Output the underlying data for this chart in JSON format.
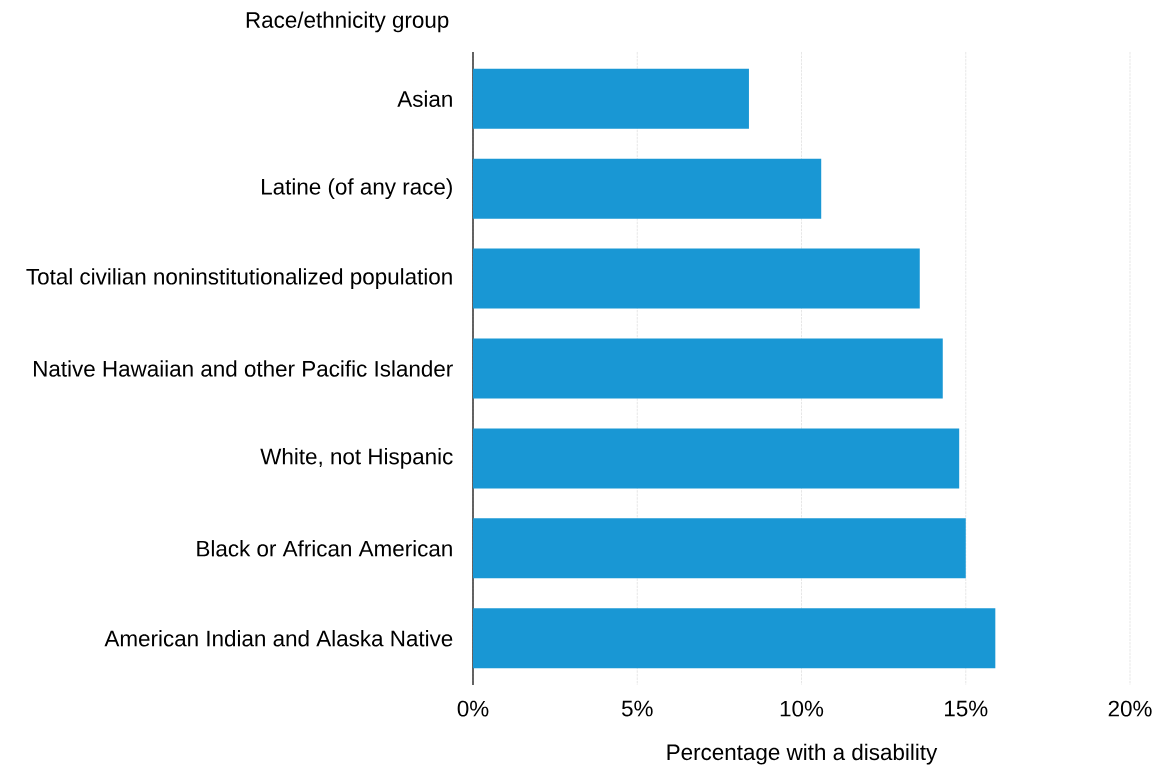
{
  "chart_data": {
    "type": "bar",
    "orientation": "horizontal",
    "ylabel": "Race/ethnicity group",
    "xlabel": "Percentage with a disability",
    "categories": [
      "Asian",
      "Latine (of any race)",
      "Total civilian noninstitutionalized population",
      "Native Hawaiian and other Pacific Islander",
      "White, not Hispanic",
      "Black or African American",
      "American Indian and Alaska Native"
    ],
    "values": [
      8.4,
      10.6,
      13.6,
      14.3,
      14.8,
      15.0,
      15.9
    ],
    "color": "#1997d4",
    "xlim": [
      0,
      20
    ],
    "xticks": [
      {
        "value": 0,
        "label": "0%"
      },
      {
        "value": 5,
        "label": "5%"
      },
      {
        "value": 10,
        "label": "10%"
      },
      {
        "value": 15,
        "label": "15%"
      },
      {
        "value": 20,
        "label": "20%"
      }
    ],
    "grid": "x"
  }
}
